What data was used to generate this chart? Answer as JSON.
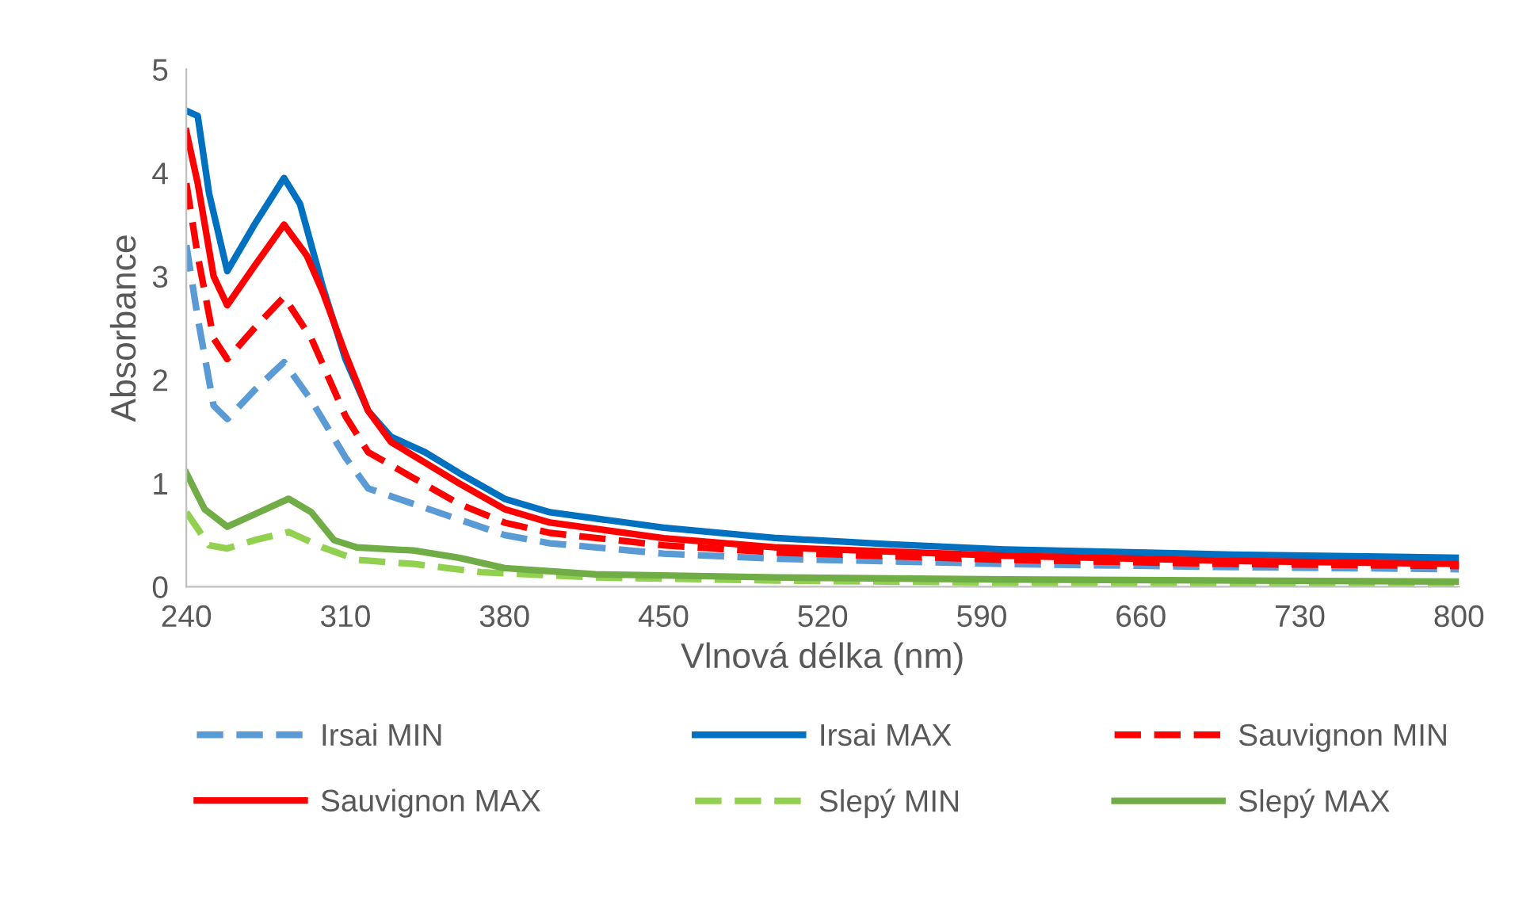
{
  "chart_data": {
    "type": "line",
    "xlabel": "Vlnová délka (nm)",
    "ylabel": "Absorbance",
    "xlim": [
      240,
      800
    ],
    "ylim": [
      0,
      5
    ],
    "xticks": [
      240,
      310,
      380,
      450,
      520,
      590,
      660,
      730,
      800
    ],
    "yticks": [
      0,
      1,
      2,
      3,
      4,
      5
    ],
    "grid": false,
    "legend": "bottom",
    "marker": "none",
    "series": [
      {
        "name": "Irsai MIN",
        "color": "#5b9bd5",
        "line_style": "dashed",
        "x": [
          240,
          245,
          252,
          258,
          270,
          283,
          295,
          310,
          320,
          340,
          360,
          380,
          400,
          450,
          500,
          600,
          700,
          800
        ],
        "values": [
          3.3,
          2.6,
          1.75,
          1.62,
          1.9,
          2.17,
          1.8,
          1.25,
          0.95,
          0.8,
          0.65,
          0.5,
          0.42,
          0.32,
          0.27,
          0.22,
          0.19,
          0.17
        ]
      },
      {
        "name": "Irsai MAX",
        "color": "#0070c0",
        "line_style": "solid",
        "x": [
          240,
          245,
          250,
          258,
          270,
          283,
          290,
          300,
          310,
          320,
          330,
          345,
          360,
          380,
          400,
          450,
          500,
          550,
          600,
          700,
          800
        ],
        "values": [
          4.6,
          4.55,
          3.8,
          3.05,
          3.5,
          3.95,
          3.7,
          2.9,
          2.2,
          1.7,
          1.45,
          1.3,
          1.1,
          0.85,
          0.72,
          0.57,
          0.47,
          0.41,
          0.36,
          0.31,
          0.28
        ]
      },
      {
        "name": "Sauvignon MIN",
        "color": "#ff0000",
        "line_style": "dashed",
        "x": [
          240,
          245,
          252,
          258,
          270,
          283,
          295,
          310,
          320,
          340,
          360,
          380,
          400,
          450,
          500,
          600,
          700,
          800
        ],
        "values": [
          3.9,
          3.2,
          2.4,
          2.2,
          2.5,
          2.8,
          2.4,
          1.65,
          1.3,
          1.05,
          0.8,
          0.62,
          0.52,
          0.4,
          0.33,
          0.26,
          0.22,
          0.2
        ]
      },
      {
        "name": "Sauvignon MAX",
        "color": "#ff0000",
        "line_style": "solid",
        "x": [
          240,
          245,
          252,
          258,
          270,
          283,
          293,
          300,
          310,
          320,
          330,
          345,
          360,
          380,
          400,
          450,
          500,
          600,
          700,
          800
        ],
        "values": [
          4.4,
          3.9,
          3.0,
          2.72,
          3.1,
          3.5,
          3.2,
          2.85,
          2.25,
          1.7,
          1.4,
          1.2,
          1.0,
          0.75,
          0.62,
          0.47,
          0.38,
          0.3,
          0.25,
          0.22
        ]
      },
      {
        "name": "Slepý MIN",
        "color": "#92d050",
        "line_style": "dashed",
        "x": [
          240,
          250,
          258,
          270,
          285,
          300,
          315,
          340,
          370,
          420,
          500,
          600,
          800
        ],
        "values": [
          0.72,
          0.4,
          0.37,
          0.45,
          0.53,
          0.38,
          0.26,
          0.22,
          0.14,
          0.09,
          0.06,
          0.04,
          0.03
        ]
      },
      {
        "name": "Slepý MAX",
        "color": "#70ad47",
        "line_style": "solid",
        "x": [
          240,
          248,
          258,
          270,
          285,
          295,
          305,
          315,
          340,
          360,
          380,
          420,
          500,
          600,
          800
        ],
        "values": [
          1.1,
          0.75,
          0.58,
          0.7,
          0.85,
          0.72,
          0.45,
          0.38,
          0.35,
          0.28,
          0.18,
          0.12,
          0.09,
          0.07,
          0.05
        ]
      }
    ]
  }
}
